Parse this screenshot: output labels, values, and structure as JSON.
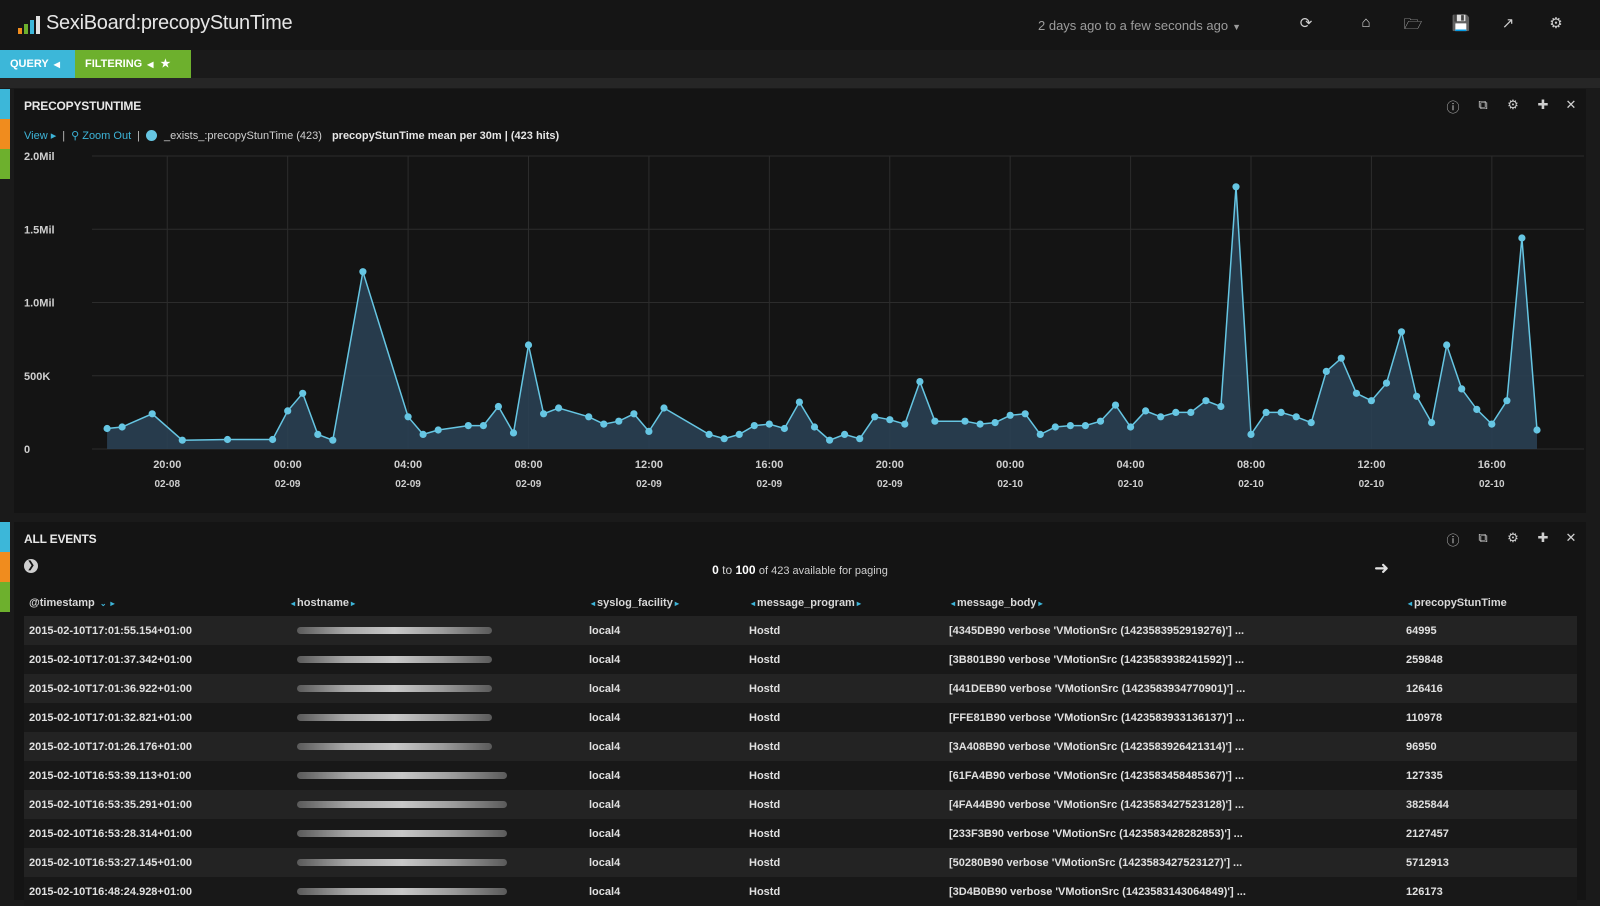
{
  "header": {
    "title": "SexiBoard:precopyStunTime",
    "time_range": "2 days ago to a few seconds ago",
    "icons": [
      "refresh-icon",
      "home-icon",
      "folder-open-icon",
      "save-icon",
      "share-icon",
      "gear-icon"
    ]
  },
  "pills": {
    "query_label": "QUERY",
    "filtering_label": "FILTERING"
  },
  "colors": {
    "query": "#3cb7d9",
    "filtering": "#6db02d",
    "accent": "#66c6e3",
    "marker_orange": "#f08c1e"
  },
  "chart_panel": {
    "title": "PRECOPYSTUNTIME",
    "view_link": "View",
    "zoom_out": "Zoom Out",
    "legend_query": "_exists_:precopyStunTime (423)",
    "legend_desc": "precopyStunTime mean per 30m | (423 hits)"
  },
  "chart_data": {
    "type": "area",
    "title": "",
    "xlabel": "",
    "ylabel": "",
    "y_ticks": [
      {
        "v": 0,
        "label": "0"
      },
      {
        "v": 500000,
        "label": "500K"
      },
      {
        "v": 1000000,
        "label": "1.0Mil"
      },
      {
        "v": 1500000,
        "label": "1.5Mil"
      },
      {
        "v": 2000000,
        "label": "2.0Mil"
      }
    ],
    "ylim": [
      0,
      2000000
    ],
    "xlim": [
      "2015-02-08T17:30",
      "2015-02-10T17:30"
    ],
    "x_ticks": [
      {
        "x": "2015-02-08T20:00",
        "time": "20:00",
        "date": "02-08"
      },
      {
        "x": "2015-02-09T00:00",
        "time": "00:00",
        "date": "02-09"
      },
      {
        "x": "2015-02-09T04:00",
        "time": "04:00",
        "date": "02-09"
      },
      {
        "x": "2015-02-09T08:00",
        "time": "08:00",
        "date": "02-09"
      },
      {
        "x": "2015-02-09T12:00",
        "time": "12:00",
        "date": "02-09"
      },
      {
        "x": "2015-02-09T16:00",
        "time": "16:00",
        "date": "02-09"
      },
      {
        "x": "2015-02-09T20:00",
        "time": "20:00",
        "date": "02-09"
      },
      {
        "x": "2015-02-10T00:00",
        "time": "00:00",
        "date": "02-10"
      },
      {
        "x": "2015-02-10T04:00",
        "time": "04:00",
        "date": "02-10"
      },
      {
        "x": "2015-02-10T08:00",
        "time": "08:00",
        "date": "02-10"
      },
      {
        "x": "2015-02-10T12:00",
        "time": "12:00",
        "date": "02-10"
      },
      {
        "x": "2015-02-10T16:00",
        "time": "16:00",
        "date": "02-10"
      }
    ],
    "grid": true,
    "series": [
      {
        "points": [
          [
            "2015-02-08T18:00",
            140000
          ],
          [
            "2015-02-08T18:30",
            150000
          ],
          [
            "2015-02-08T19:30",
            240000
          ],
          [
            "2015-02-08T20:30",
            60000
          ],
          [
            "2015-02-08T22:00",
            65000
          ],
          [
            "2015-02-08T23:30",
            65000
          ],
          [
            "2015-02-09T00:00",
            260000
          ],
          [
            "2015-02-09T00:30",
            380000
          ],
          [
            "2015-02-09T01:00",
            100000
          ],
          [
            "2015-02-09T01:30",
            60000
          ],
          [
            "2015-02-09T02:30",
            1210000
          ],
          [
            "2015-02-09T04:00",
            220000
          ],
          [
            "2015-02-09T04:30",
            100000
          ],
          [
            "2015-02-09T05:00",
            130000
          ],
          [
            "2015-02-09T06:00",
            160000
          ],
          [
            "2015-02-09T06:30",
            160000
          ],
          [
            "2015-02-09T07:00",
            290000
          ],
          [
            "2015-02-09T07:30",
            110000
          ],
          [
            "2015-02-09T08:00",
            710000
          ],
          [
            "2015-02-09T08:30",
            240000
          ],
          [
            "2015-02-09T09:00",
            280000
          ],
          [
            "2015-02-09T10:00",
            220000
          ],
          [
            "2015-02-09T10:30",
            170000
          ],
          [
            "2015-02-09T11:00",
            190000
          ],
          [
            "2015-02-09T11:30",
            240000
          ],
          [
            "2015-02-09T12:00",
            120000
          ],
          [
            "2015-02-09T12:30",
            280000
          ],
          [
            "2015-02-09T14:00",
            100000
          ],
          [
            "2015-02-09T14:30",
            70000
          ],
          [
            "2015-02-09T15:00",
            100000
          ],
          [
            "2015-02-09T15:30",
            160000
          ],
          [
            "2015-02-09T16:00",
            170000
          ],
          [
            "2015-02-09T16:30",
            140000
          ],
          [
            "2015-02-09T17:00",
            320000
          ],
          [
            "2015-02-09T17:30",
            150000
          ],
          [
            "2015-02-09T18:00",
            60000
          ],
          [
            "2015-02-09T18:30",
            100000
          ],
          [
            "2015-02-09T19:00",
            70000
          ],
          [
            "2015-02-09T19:30",
            220000
          ],
          [
            "2015-02-09T20:00",
            200000
          ],
          [
            "2015-02-09T20:30",
            170000
          ],
          [
            "2015-02-09T21:00",
            460000
          ],
          [
            "2015-02-09T21:30",
            190000
          ],
          [
            "2015-02-09T22:30",
            190000
          ],
          [
            "2015-02-09T23:00",
            170000
          ],
          [
            "2015-02-09T23:30",
            180000
          ],
          [
            "2015-02-10T00:00",
            230000
          ],
          [
            "2015-02-10T00:30",
            240000
          ],
          [
            "2015-02-10T01:00",
            100000
          ],
          [
            "2015-02-10T01:30",
            150000
          ],
          [
            "2015-02-10T02:00",
            160000
          ],
          [
            "2015-02-10T02:30",
            160000
          ],
          [
            "2015-02-10T03:00",
            190000
          ],
          [
            "2015-02-10T03:30",
            300000
          ],
          [
            "2015-02-10T04:00",
            150000
          ],
          [
            "2015-02-10T04:30",
            260000
          ],
          [
            "2015-02-10T05:00",
            220000
          ],
          [
            "2015-02-10T05:30",
            250000
          ],
          [
            "2015-02-10T06:00",
            250000
          ],
          [
            "2015-02-10T06:30",
            330000
          ],
          [
            "2015-02-10T07:00",
            290000
          ],
          [
            "2015-02-10T07:30",
            1790000
          ],
          [
            "2015-02-10T08:00",
            100000
          ],
          [
            "2015-02-10T08:30",
            250000
          ],
          [
            "2015-02-10T09:00",
            250000
          ],
          [
            "2015-02-10T09:30",
            220000
          ],
          [
            "2015-02-10T10:00",
            180000
          ],
          [
            "2015-02-10T10:30",
            530000
          ],
          [
            "2015-02-10T11:00",
            620000
          ],
          [
            "2015-02-10T11:30",
            380000
          ],
          [
            "2015-02-10T12:00",
            330000
          ],
          [
            "2015-02-10T12:30",
            450000
          ],
          [
            "2015-02-10T13:00",
            800000
          ],
          [
            "2015-02-10T13:30",
            360000
          ],
          [
            "2015-02-10T14:00",
            180000
          ],
          [
            "2015-02-10T14:30",
            710000
          ],
          [
            "2015-02-10T15:00",
            410000
          ],
          [
            "2015-02-10T15:30",
            270000
          ],
          [
            "2015-02-10T16:00",
            170000
          ],
          [
            "2015-02-10T16:30",
            330000
          ],
          [
            "2015-02-10T17:00",
            1440000
          ],
          [
            "2015-02-10T17:30",
            130000
          ]
        ]
      }
    ]
  },
  "events_panel": {
    "title": "ALL EVENTS",
    "paging_from": "0",
    "paging_to_word": "to",
    "paging_to": "100",
    "paging_rest": "of 423 available for paging",
    "columns": [
      "@timestamp",
      "hostname",
      "syslog_facility",
      "message_program",
      "message_body",
      "precopyStunTime"
    ],
    "rows": [
      {
        "timestamp": "2015-02-10T17:01:55.154+01:00",
        "facility": "local4",
        "program": "Hostd",
        "body": "[4345DB90 verbose 'VMotionSrc (1423583952919276)'] ...",
        "value": "64995",
        "host_w": 195
      },
      {
        "timestamp": "2015-02-10T17:01:37.342+01:00",
        "facility": "local4",
        "program": "Hostd",
        "body": "[3B801B90 verbose 'VMotionSrc (1423583938241592)'] ...",
        "value": "259848",
        "host_w": 195
      },
      {
        "timestamp": "2015-02-10T17:01:36.922+01:00",
        "facility": "local4",
        "program": "Hostd",
        "body": "[441DEB90 verbose 'VMotionSrc (1423583934770901)'] ...",
        "value": "126416",
        "host_w": 195
      },
      {
        "timestamp": "2015-02-10T17:01:32.821+01:00",
        "facility": "local4",
        "program": "Hostd",
        "body": "[FFE81B90 verbose 'VMotionSrc (1423583933136137)'] ...",
        "value": "110978",
        "host_w": 195
      },
      {
        "timestamp": "2015-02-10T17:01:26.176+01:00",
        "facility": "local4",
        "program": "Hostd",
        "body": "[3A408B90 verbose 'VMotionSrc (1423583926421314)'] ...",
        "value": "96950",
        "host_w": 195
      },
      {
        "timestamp": "2015-02-10T16:53:39.113+01:00",
        "facility": "local4",
        "program": "Hostd",
        "body": "[61FA4B90 verbose 'VMotionSrc (1423583458485367)'] ...",
        "value": "127335",
        "host_w": 210
      },
      {
        "timestamp": "2015-02-10T16:53:35.291+01:00",
        "facility": "local4",
        "program": "Hostd",
        "body": "[4FA44B90 verbose 'VMotionSrc (1423583427523128)'] ...",
        "value": "3825844",
        "host_w": 210
      },
      {
        "timestamp": "2015-02-10T16:53:28.314+01:00",
        "facility": "local4",
        "program": "Hostd",
        "body": "[233F3B90 verbose 'VMotionSrc (1423583428282853)'] ...",
        "value": "2127457",
        "host_w": 210
      },
      {
        "timestamp": "2015-02-10T16:53:27.145+01:00",
        "facility": "local4",
        "program": "Hostd",
        "body": "[50280B90 verbose 'VMotionSrc (1423583427523127)'] ...",
        "value": "5712913",
        "host_w": 210
      },
      {
        "timestamp": "2015-02-10T16:48:24.928+01:00",
        "facility": "local4",
        "program": "Hostd",
        "body": "[3D4B0B90 verbose 'VMotionSrc (1423583143064849)'] ...",
        "value": "126173",
        "host_w": 210
      }
    ]
  }
}
